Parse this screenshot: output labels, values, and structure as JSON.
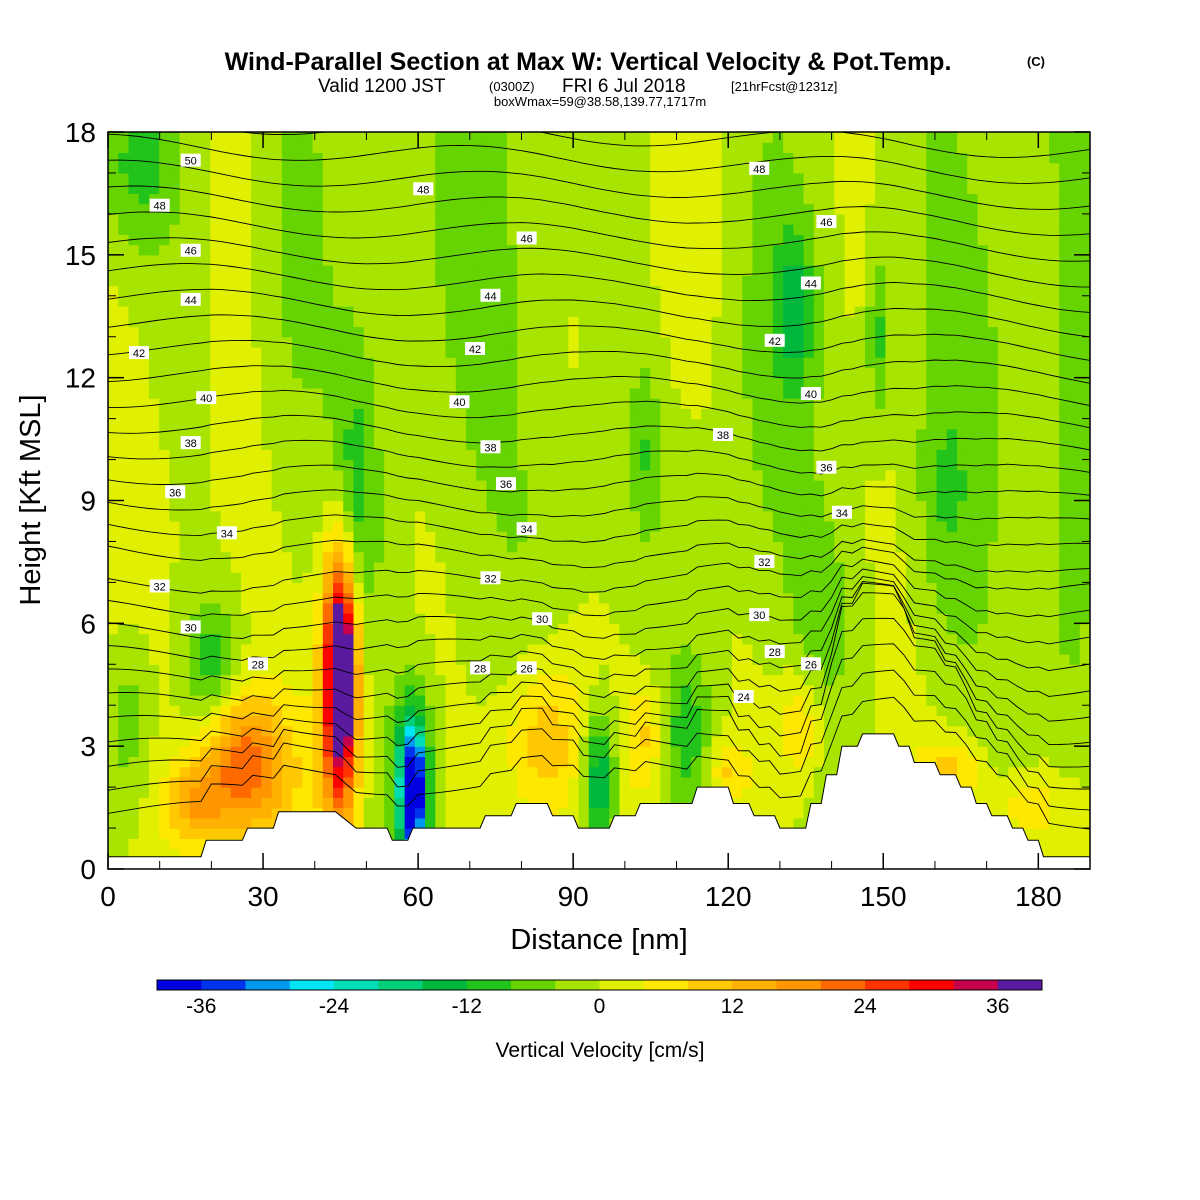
{
  "title_main": "Wind-Parallel Section at Max W: Vertical Velocity & Pot.Temp.",
  "title_mark": "(C)",
  "title_valid": "Valid 1200 JST",
  "title_utc": "(0300Z)",
  "title_date": "FRI 6 Jul 2018",
  "title_fcst": "[21hrFcst@1231z]",
  "title_box": "boxWmax=59@38.58,139.77,1717m",
  "chart_data": {
    "type": "heatmap",
    "description_units": {
      "fill": "Vertical Velocity [cm/s]",
      "contours": "Potential temperature (contour labels)"
    },
    "xlabel": "Distance [nm]",
    "ylabel": "Height [Kft MSL]",
    "xlim": [
      0,
      190
    ],
    "ylim": [
      0,
      18
    ],
    "x_ticks": [
      0,
      30,
      60,
      90,
      120,
      150,
      180
    ],
    "y_ticks": [
      0,
      3,
      6,
      9,
      12,
      15,
      18
    ],
    "colorbar": {
      "title": "Vertical Velocity [cm/s]",
      "tick_values": [
        -36,
        -24,
        -12,
        0,
        12,
        24,
        36
      ],
      "tick_labels": [
        "-36",
        "-24",
        "-12",
        "0",
        "12",
        "24",
        "36"
      ],
      "bins": 20,
      "range": [
        -40,
        40
      ],
      "colors": [
        "#0000e0",
        "#0033ee",
        "#0099f0",
        "#00e4f4",
        "#00dcb6",
        "#00d07a",
        "#00b83e",
        "#22c41c",
        "#66d400",
        "#a8e400",
        "#e0f000",
        "#ffe800",
        "#ffc800",
        "#ffb000",
        "#ff9600",
        "#ff6a00",
        "#ff3400",
        "#ff0000",
        "#c8004c",
        "#5a1aa0"
      ]
    },
    "terrain_height_kft": [
      [
        0,
        0.3
      ],
      [
        18,
        0.3
      ],
      [
        19,
        0.7
      ],
      [
        26,
        0.7
      ],
      [
        27,
        1.0
      ],
      [
        32,
        1.0
      ],
      [
        33,
        1.4
      ],
      [
        44,
        1.4
      ],
      [
        45,
        1.3
      ],
      [
        48,
        1.0
      ],
      [
        54,
        1.0
      ],
      [
        55,
        0.7
      ],
      [
        58,
        0.7
      ],
      [
        59,
        1.0
      ],
      [
        63,
        1.0
      ],
      [
        64,
        1.0
      ],
      [
        72,
        1.0
      ],
      [
        73,
        1.3
      ],
      [
        78,
        1.3
      ],
      [
        79,
        1.6
      ],
      [
        85,
        1.6
      ],
      [
        86,
        1.3
      ],
      [
        90,
        1.3
      ],
      [
        91,
        1.0
      ],
      [
        97,
        1.0
      ],
      [
        98,
        1.3
      ],
      [
        102,
        1.3
      ],
      [
        103,
        1.6
      ],
      [
        113,
        1.6
      ],
      [
        114,
        2.0
      ],
      [
        120,
        2.0
      ],
      [
        121,
        1.6
      ],
      [
        124,
        1.6
      ],
      [
        125,
        1.3
      ],
      [
        129,
        1.3
      ],
      [
        130,
        1.0
      ],
      [
        135,
        1.0
      ],
      [
        136,
        1.6
      ],
      [
        138,
        1.6
      ],
      [
        139,
        2.3
      ],
      [
        141,
        2.3
      ],
      [
        142,
        3.0
      ],
      [
        145,
        3.0
      ],
      [
        146,
        3.3
      ],
      [
        152,
        3.3
      ],
      [
        153,
        3.0
      ],
      [
        155,
        3.0
      ],
      [
        156,
        2.6
      ],
      [
        160,
        2.6
      ],
      [
        161,
        2.3
      ],
      [
        164,
        2.3
      ],
      [
        165,
        2.0
      ],
      [
        167,
        2.0
      ],
      [
        168,
        1.6
      ],
      [
        170,
        1.6
      ],
      [
        171,
        1.3
      ],
      [
        174,
        1.3
      ],
      [
        175,
        1.0
      ],
      [
        177,
        1.0
      ],
      [
        178,
        0.7
      ],
      [
        180,
        0.7
      ],
      [
        181,
        0.3
      ],
      [
        190,
        0.3
      ]
    ],
    "contour_labels": [
      {
        "x": 16,
        "y": 17.3,
        "label": "50"
      },
      {
        "x": 10,
        "y": 16.2,
        "label": "48"
      },
      {
        "x": 16,
        "y": 15.1,
        "label": "46"
      },
      {
        "x": 16,
        "y": 13.9,
        "label": "44"
      },
      {
        "x": 6,
        "y": 12.6,
        "label": "42"
      },
      {
        "x": 19,
        "y": 11.5,
        "label": "40"
      },
      {
        "x": 16,
        "y": 10.4,
        "label": "38"
      },
      {
        "x": 13,
        "y": 9.2,
        "label": "36"
      },
      {
        "x": 23,
        "y": 8.2,
        "label": "34"
      },
      {
        "x": 10,
        "y": 6.9,
        "label": "32"
      },
      {
        "x": 16,
        "y": 5.9,
        "label": "30"
      },
      {
        "x": 29,
        "y": 5.0,
        "label": "28"
      },
      {
        "x": 61,
        "y": 16.6,
        "label": "48"
      },
      {
        "x": 81,
        "y": 15.4,
        "label": "46"
      },
      {
        "x": 74,
        "y": 14.0,
        "label": "44"
      },
      {
        "x": 71,
        "y": 12.7,
        "label": "42"
      },
      {
        "x": 68,
        "y": 11.4,
        "label": "40"
      },
      {
        "x": 74,
        "y": 10.3,
        "label": "38"
      },
      {
        "x": 77,
        "y": 9.4,
        "label": "36"
      },
      {
        "x": 81,
        "y": 8.3,
        "label": "34"
      },
      {
        "x": 74,
        "y": 7.1,
        "label": "32"
      },
      {
        "x": 84,
        "y": 6.1,
        "label": "30"
      },
      {
        "x": 72,
        "y": 4.9,
        "label": "28"
      },
      {
        "x": 81,
        "y": 4.9,
        "label": "26"
      },
      {
        "x": 126,
        "y": 17.1,
        "label": "48"
      },
      {
        "x": 139,
        "y": 15.8,
        "label": "46"
      },
      {
        "x": 136,
        "y": 14.3,
        "label": "44"
      },
      {
        "x": 129,
        "y": 12.9,
        "label": "42"
      },
      {
        "x": 136,
        "y": 11.6,
        "label": "40"
      },
      {
        "x": 119,
        "y": 10.6,
        "label": "38"
      },
      {
        "x": 139,
        "y": 9.8,
        "label": "36"
      },
      {
        "x": 142,
        "y": 8.7,
        "label": "34"
      },
      {
        "x": 127,
        "y": 7.5,
        "label": "32"
      },
      {
        "x": 126,
        "y": 6.2,
        "label": "30"
      },
      {
        "x": 129,
        "y": 5.3,
        "label": "28"
      },
      {
        "x": 136,
        "y": 5.0,
        "label": "26"
      },
      {
        "x": 123,
        "y": 4.2,
        "label": "24"
      }
    ],
    "w_features": [
      {
        "x": 45,
        "y": 4.9,
        "sx": 2.0,
        "sy": 1.8,
        "w": 40
      },
      {
        "x": 45,
        "y": 3.9,
        "sx": 2.8,
        "sy": 2.8,
        "w": 20
      },
      {
        "x": 26,
        "y": 2.5,
        "sx": 5.0,
        "sy": 1.1,
        "w": 18
      },
      {
        "x": 17,
        "y": 1.6,
        "sx": 4.0,
        "sy": 0.8,
        "w": 15
      },
      {
        "x": 30,
        "y": 2.3,
        "sx": 8.0,
        "sy": 1.6,
        "w": 7
      },
      {
        "x": 84,
        "y": 3.0,
        "sx": 5.5,
        "sy": 1.4,
        "w": 12
      },
      {
        "x": 104,
        "y": 3.2,
        "sx": 3.0,
        "sy": 1.0,
        "w": 10
      },
      {
        "x": 120,
        "y": 2.4,
        "sx": 3.0,
        "sy": 0.6,
        "w": 9
      },
      {
        "x": 134,
        "y": 3.5,
        "sx": 2.8,
        "sy": 1.0,
        "w": 9
      },
      {
        "x": 163,
        "y": 2.4,
        "sx": 5.0,
        "sy": 0.6,
        "w": 10
      },
      {
        "x": 177,
        "y": 1.5,
        "sx": 5.0,
        "sy": 0.5,
        "w": 8
      },
      {
        "x": 59,
        "y": 1.9,
        "sx": 1.6,
        "sy": 1.1,
        "w": -36
      },
      {
        "x": 59,
        "y": 2.2,
        "sx": 3.0,
        "sy": 1.6,
        "w": -14
      },
      {
        "x": 95,
        "y": 2.2,
        "sx": 2.2,
        "sy": 1.2,
        "w": -18
      },
      {
        "x": 112,
        "y": 3.3,
        "sx": 3.5,
        "sy": 1.2,
        "w": -9
      },
      {
        "x": 20,
        "y": 5.1,
        "sx": 3.5,
        "sy": 1.0,
        "w": -10
      },
      {
        "x": 4,
        "y": 3.6,
        "sx": 3.0,
        "sy": 1.6,
        "w": -7
      },
      {
        "x": 48,
        "y": 9.0,
        "sx": 3.0,
        "sy": 2.5,
        "w": -9
      },
      {
        "x": 127,
        "y": 12.0,
        "sx": 7.0,
        "sy": 4.0,
        "w": -5
      },
      {
        "x": 133,
        "y": 13.8,
        "sx": 2.5,
        "sy": 1.3,
        "w": -10
      },
      {
        "x": 149,
        "y": 13.0,
        "sx": 1.5,
        "sy": 1.5,
        "w": -9
      },
      {
        "x": 5,
        "y": 17.2,
        "sx": 6.0,
        "sy": 1.5,
        "w": -8
      },
      {
        "x": 70,
        "y": 15.5,
        "sx": 12.0,
        "sy": 5.0,
        "w": -4
      },
      {
        "x": 175,
        "y": 14.5,
        "sx": 14.0,
        "sy": 6.0,
        "w": -4
      },
      {
        "x": 104,
        "y": 10.2,
        "sx": 2.0,
        "sy": 1.5,
        "w": -6
      },
      {
        "x": 162,
        "y": 9.0,
        "sx": 4.0,
        "sy": 2.0,
        "w": -5
      },
      {
        "x": 35,
        "y": 14.0,
        "sx": 5.0,
        "sy": 4.0,
        "w": -4
      },
      {
        "x": 186,
        "y": 7.0,
        "sx": 3.0,
        "sy": 3.0,
        "w": -5
      },
      {
        "x": 138,
        "y": 6.2,
        "sx": 4.0,
        "sy": 1.5,
        "w": -4
      },
      {
        "x": 88,
        "y": 8.5,
        "sx": 6.0,
        "sy": 1.8,
        "w": -3
      },
      {
        "x": 110,
        "y": 15.5,
        "sx": 5.0,
        "sy": 3.0,
        "w": 3
      },
      {
        "x": 15,
        "y": 9.0,
        "sx": 10.0,
        "sy": 4.0,
        "w": 2
      }
    ]
  }
}
